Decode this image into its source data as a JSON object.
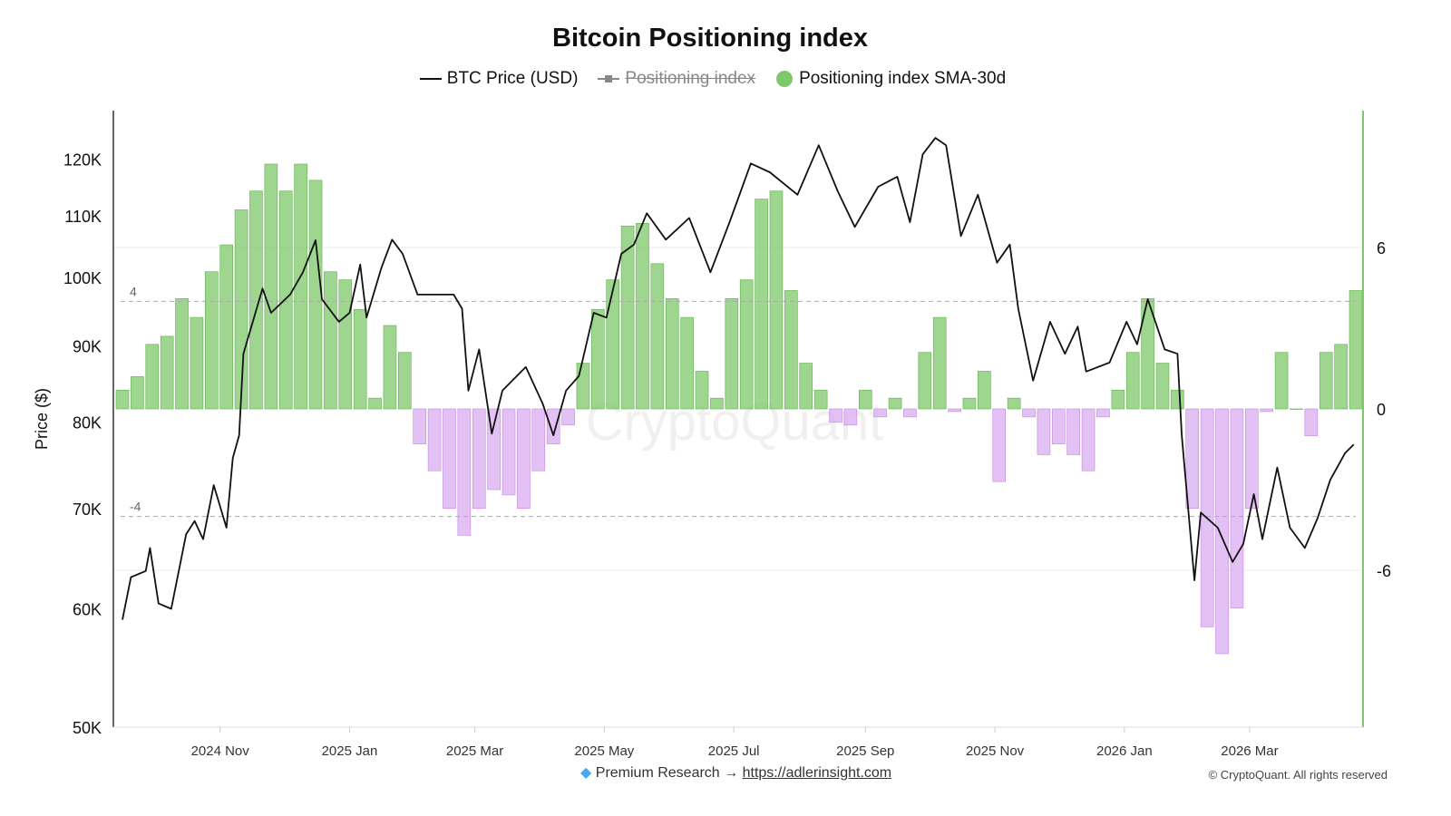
{
  "title": "Bitcoin Positioning index",
  "legend": [
    {
      "label": "BTC Price (USD)",
      "color": "#111111",
      "visible": true
    },
    {
      "label": "Positioning index",
      "color": "#888888",
      "visible": false
    },
    {
      "label": "Positioning index SMA-30d",
      "color": "#7dc86a",
      "visible": true
    }
  ],
  "footer": {
    "icon": "gem-icon",
    "text": "Premium Research →",
    "link": "https://adlerinsight.com",
    "copyright": "© CryptoQuant. All rights reserved"
  },
  "watermark": "CryptoQuant",
  "colors": {
    "positive": "#7dc86a",
    "negative": "#d9a6ef",
    "price": "#111111",
    "right_axis": "#7dc86a"
  },
  "chart_data": {
    "type": "bar+line",
    "title": "Bitcoin Positioning index",
    "left_axis": {
      "label": "Price ($)",
      "scale": "log",
      "range": [
        50000,
        130000
      ],
      "ticks": [
        50000,
        60000,
        70000,
        80000,
        90000,
        100000,
        110000,
        120000
      ],
      "tick_labels": [
        "50K",
        "60K",
        "70K",
        "80K",
        "90K",
        "100K",
        "110K",
        "120K"
      ]
    },
    "right_axis": {
      "range": [
        -10.3,
        11
      ],
      "ticks": [
        6,
        0,
        -6
      ],
      "tick_labels": [
        "6",
        "0",
        "-6"
      ],
      "reference_lines": [
        {
          "value": 4,
          "label": "4"
        },
        {
          "value": -4,
          "label": "-4"
        }
      ]
    },
    "x_axis": {
      "range": [
        "2024-09-16",
        "2026-04-20"
      ],
      "ticks": [
        "2024-11-01",
        "2025-01-01",
        "2025-03-01",
        "2025-05-01",
        "2025-07-01",
        "2025-09-01",
        "2025-11-01",
        "2026-01-01",
        "2026-03-01"
      ],
      "tick_labels": [
        "2024 Nov",
        "2025 Jan",
        "2025 Mar",
        "2025 May",
        "2025 Jul",
        "2025 Sep",
        "2025 Nov",
        "2026 Jan",
        "2026 Mar"
      ]
    },
    "grid": true,
    "legend_position": "top",
    "price_series": {
      "name": "BTC Price (USD)",
      "dates": [
        "2024-09-16",
        "2024-09-20",
        "2024-09-27",
        "2024-09-29",
        "2024-10-03",
        "2024-10-09",
        "2024-10-16",
        "2024-10-20",
        "2024-10-24",
        "2024-10-29",
        "2024-11-04",
        "2024-11-07",
        "2024-11-10",
        "2024-11-12",
        "2024-11-21",
        "2024-11-25",
        "2024-12-04",
        "2024-12-10",
        "2024-12-16",
        "2024-12-19",
        "2024-12-27",
        "2025-01-01",
        "2025-01-06",
        "2025-01-09",
        "2025-01-16",
        "2025-01-21",
        "2025-01-26",
        "2025-02-02",
        "2025-02-10",
        "2025-02-19",
        "2025-02-23",
        "2025-02-26",
        "2025-03-03",
        "2025-03-09",
        "2025-03-14",
        "2025-03-25",
        "2025-04-02",
        "2025-04-07",
        "2025-04-13",
        "2025-04-19",
        "2025-04-26",
        "2025-05-02",
        "2025-05-09",
        "2025-05-15",
        "2025-05-21",
        "2025-05-30",
        "2025-06-10",
        "2025-06-20",
        "2025-06-29",
        "2025-07-09",
        "2025-07-18",
        "2025-07-31",
        "2025-08-10",
        "2025-08-19",
        "2025-08-27",
        "2025-09-07",
        "2025-09-16",
        "2025-09-22",
        "2025-09-28",
        "2025-10-04",
        "2025-10-09",
        "2025-10-16",
        "2025-10-24",
        "2025-11-02",
        "2025-11-08",
        "2025-11-12",
        "2025-11-19",
        "2025-11-27",
        "2025-12-04",
        "2025-12-10",
        "2025-12-14",
        "2025-12-25",
        "2026-01-02",
        "2026-01-07",
        "2026-01-12",
        "2026-01-20",
        "2026-01-26",
        "2026-01-28",
        "2026-02-03",
        "2026-02-06",
        "2026-02-14",
        "2026-02-21",
        "2026-02-26",
        "2026-03-03",
        "2026-03-07",
        "2026-03-14",
        "2026-03-20",
        "2026-03-27",
        "2026-04-02",
        "2026-04-08",
        "2026-04-15",
        "2026-04-19"
      ],
      "values": [
        59000,
        63000,
        63600,
        65900,
        60500,
        60000,
        67300,
        68700,
        66800,
        72600,
        68000,
        75700,
        78400,
        88900,
        98300,
        94700,
        97400,
        100800,
        105900,
        96700,
        93400,
        94700,
        102000,
        94000,
        101500,
        106000,
        103700,
        97400,
        97400,
        97400,
        95300,
        84000,
        89500,
        78600,
        84000,
        87100,
        82300,
        78400,
        84000,
        85900,
        94700,
        94000,
        103700,
        105200,
        110400,
        106000,
        109600,
        100800,
        108900,
        119200,
        117600,
        113600,
        122600,
        114200,
        108100,
        115000,
        116800,
        108900,
        120900,
        124000,
        122600,
        106600,
        113600,
        102300,
        105200,
        95300,
        85300,
        93400,
        88900,
        92700,
        86500,
        87700,
        93400,
        90200,
        96700,
        89500,
        88900,
        78400,
        62700,
        69600,
        68000,
        64500,
        66300,
        71600,
        66800,
        74600,
        68000,
        65900,
        69000,
        73200,
        76300,
        77300
      ]
    },
    "index_series": {
      "name": "Positioning index SMA-30d",
      "dates": [
        "2024-09-16",
        "2024-09-23",
        "2024-09-30",
        "2024-10-07",
        "2024-10-14",
        "2024-10-21",
        "2024-10-28",
        "2024-11-04",
        "2024-11-11",
        "2024-11-18",
        "2024-11-25",
        "2024-12-02",
        "2024-12-09",
        "2024-12-16",
        "2024-12-23",
        "2024-12-30",
        "2025-01-06",
        "2025-01-13",
        "2025-01-20",
        "2025-01-27",
        "2025-02-03",
        "2025-02-10",
        "2025-02-17",
        "2025-02-24",
        "2025-03-03",
        "2025-03-10",
        "2025-03-17",
        "2025-03-24",
        "2025-03-31",
        "2025-04-07",
        "2025-04-14",
        "2025-04-21",
        "2025-04-28",
        "2025-05-05",
        "2025-05-12",
        "2025-05-19",
        "2025-05-26",
        "2025-06-02",
        "2025-06-09",
        "2025-06-16",
        "2025-06-23",
        "2025-06-30",
        "2025-07-07",
        "2025-07-14",
        "2025-07-21",
        "2025-07-28",
        "2025-08-04",
        "2025-08-11",
        "2025-08-18",
        "2025-08-25",
        "2025-09-01",
        "2025-09-08",
        "2025-09-15",
        "2025-09-22",
        "2025-09-29",
        "2025-10-06",
        "2025-10-13",
        "2025-10-20",
        "2025-10-27",
        "2025-11-03",
        "2025-11-10",
        "2025-11-17",
        "2025-11-24",
        "2025-12-01",
        "2025-12-08",
        "2025-12-15",
        "2025-12-22",
        "2025-12-29",
        "2026-01-05",
        "2026-01-12",
        "2026-01-19",
        "2026-01-26",
        "2026-02-02",
        "2026-02-09",
        "2026-02-16",
        "2026-02-23",
        "2026-03-02",
        "2026-03-09",
        "2026-03-16",
        "2026-03-23",
        "2026-03-30",
        "2026-04-06",
        "2026-04-13",
        "2026-04-20"
      ],
      "values": [
        0.7,
        1.2,
        2.4,
        2.7,
        4.1,
        3.4,
        5.1,
        6.1,
        7.4,
        8.1,
        9.1,
        8.1,
        9.1,
        8.5,
        5.1,
        4.8,
        3.7,
        0.4,
        3.1,
        2.1,
        -1.3,
        -2.3,
        -3.7,
        -4.7,
        -3.7,
        -3.0,
        -3.2,
        -3.7,
        -2.3,
        -1.3,
        -0.6,
        1.7,
        3.7,
        4.8,
        6.8,
        6.9,
        5.4,
        4.1,
        3.4,
        1.4,
        0.4,
        4.1,
        4.8,
        7.8,
        8.1,
        4.4,
        1.7,
        0.7,
        -0.5,
        -0.6,
        0.7,
        -0.3,
        0.4,
        -0.3,
        2.1,
        3.4,
        -0.1,
        0.4,
        1.4,
        -2.7,
        0.4,
        -0.3,
        -1.7,
        -1.3,
        -1.7,
        -2.3,
        -0.3,
        0.7,
        2.1,
        4.1,
        1.7,
        0.7,
        -3.7,
        -8.1,
        -9.1,
        -7.4,
        -3.7,
        -0.1,
        2.1,
        0,
        -1.0,
        2.1,
        2.4,
        4.4
      ]
    }
  }
}
